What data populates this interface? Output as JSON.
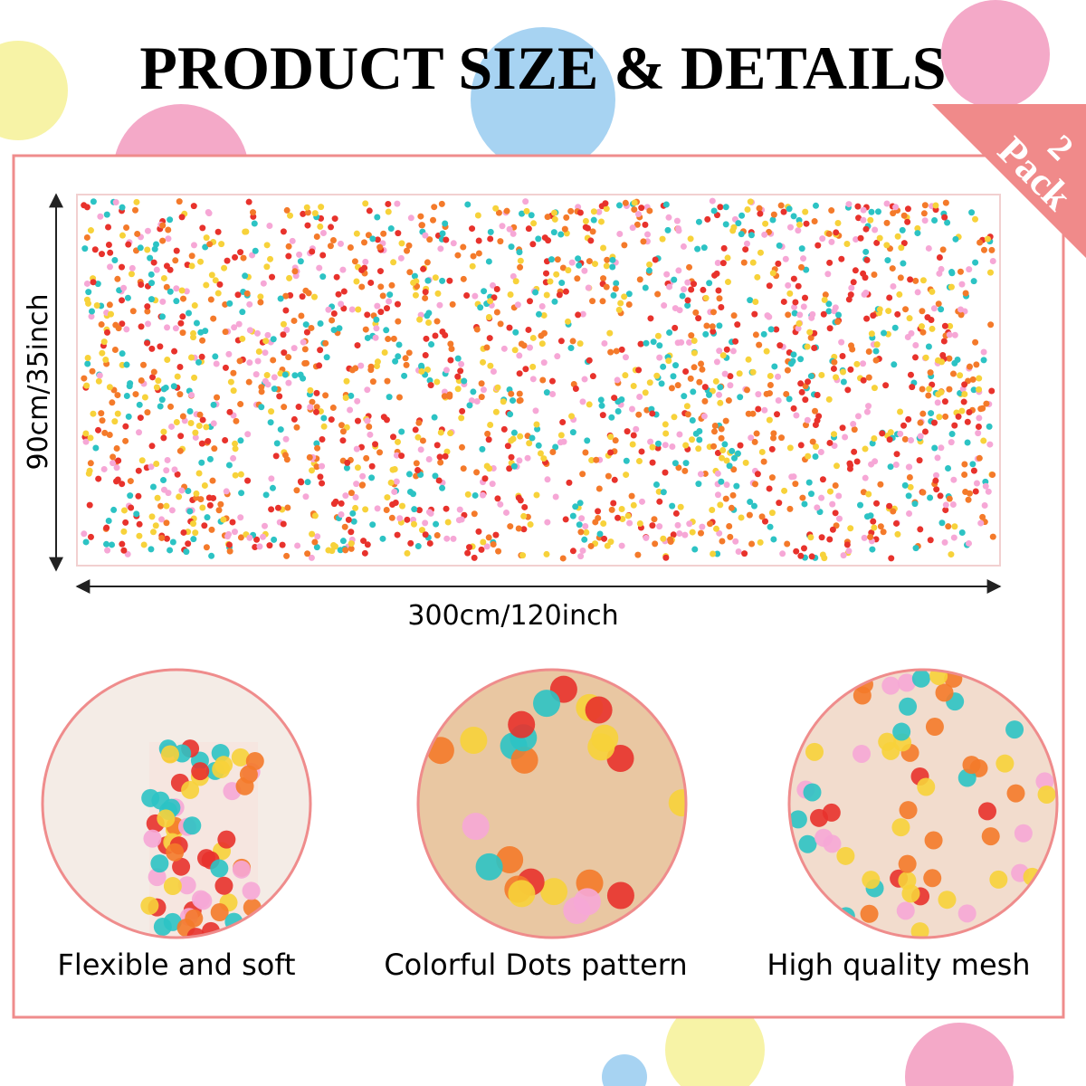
{
  "header": {
    "title": "PRODUCT SIZE & DETAILS",
    "badge": {
      "count": "2",
      "unit": "Pack"
    }
  },
  "dimensions": {
    "height": "90cm/35inch",
    "width": "300cm/120inch"
  },
  "features": [
    {
      "caption": "Flexible and soft"
    },
    {
      "caption": "Colorful Dots pattern"
    },
    {
      "caption": "High quality mesh"
    }
  ]
}
